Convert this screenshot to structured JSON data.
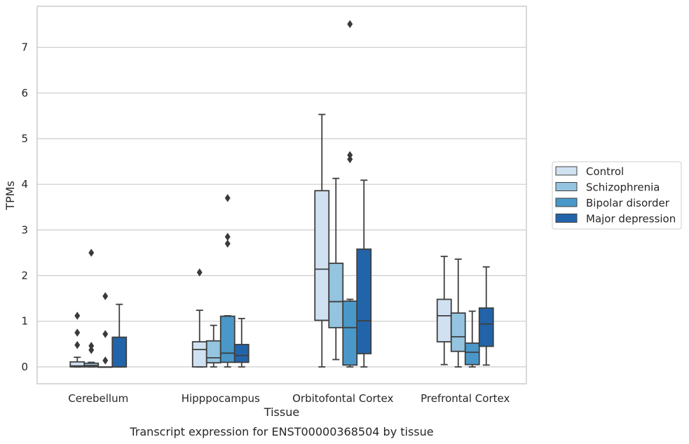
{
  "chart_data": {
    "type": "box",
    "title": "",
    "caption": "Transcript expression for ENST00000368504 by tissue",
    "xlabel": "Tissue",
    "ylabel": "TPMs",
    "ylim": [
      -0.37,
      7.9
    ],
    "yticks": [
      "0",
      "1",
      "2",
      "3",
      "4",
      "5",
      "6",
      "7"
    ],
    "grid": true,
    "legend_position": "right",
    "categories": [
      "Cerebellum",
      "Hipppocampus",
      "Orbitofontal Cortex",
      "Prefrontal Cortex"
    ],
    "series": [
      {
        "name": "Control",
        "color": "#d0e1f2",
        "boxes": [
          {
            "q1": 0.0,
            "median": 0.02,
            "q3": 0.11,
            "whisker_low": 0.0,
            "whisker_high": 0.21,
            "outliers": [
              0.48,
              0.75,
              1.12
            ]
          },
          {
            "q1": 0.0,
            "median": 0.38,
            "q3": 0.55,
            "whisker_low": 0.0,
            "whisker_high": 1.24,
            "outliers": [
              2.07
            ]
          },
          {
            "q1": 1.02,
            "median": 2.14,
            "q3": 3.86,
            "whisker_low": 0.0,
            "whisker_high": 5.53,
            "outliers": []
          },
          {
            "q1": 0.55,
            "median": 1.12,
            "q3": 1.48,
            "whisker_low": 0.05,
            "whisker_high": 2.42,
            "outliers": []
          }
        ]
      },
      {
        "name": "Schizophrenia",
        "color": "#94c4df",
        "boxes": [
          {
            "q1": 0.0,
            "median": 0.03,
            "q3": 0.08,
            "whisker_low": 0.0,
            "whisker_high": 0.1,
            "outliers": [
              0.37,
              0.46,
              2.5
            ]
          },
          {
            "q1": 0.09,
            "median": 0.2,
            "q3": 0.57,
            "whisker_low": 0.0,
            "whisker_high": 0.91,
            "outliers": []
          },
          {
            "q1": 0.86,
            "median": 1.43,
            "q3": 2.27,
            "whisker_low": 0.16,
            "whisker_high": 4.13,
            "outliers": []
          },
          {
            "q1": 0.34,
            "median": 0.66,
            "q3": 1.18,
            "whisker_low": 0.0,
            "whisker_high": 2.36,
            "outliers": []
          }
        ]
      },
      {
        "name": "Bipolar disorder",
        "color": "#4a98c9",
        "boxes": [
          {
            "q1": 0.0,
            "median": 0.0,
            "q3": 0.0,
            "whisker_low": 0.0,
            "whisker_high": 0.0,
            "outliers": [
              0.14,
              0.72,
              1.55
            ]
          },
          {
            "q1": 0.1,
            "median": 0.3,
            "q3": 1.11,
            "whisker_low": 0.0,
            "whisker_high": 1.12,
            "outliers": [
              2.7,
              2.85,
              3.7
            ]
          },
          {
            "q1": 0.04,
            "median": 0.86,
            "q3": 1.44,
            "whisker_low": 0.0,
            "whisker_high": 1.48,
            "outliers": [
              4.55,
              4.64,
              7.51
            ]
          },
          {
            "q1": 0.05,
            "median": 0.32,
            "q3": 0.52,
            "whisker_low": 0.0,
            "whisker_high": 1.22,
            "outliers": []
          }
        ]
      },
      {
        "name": "Major depression",
        "color": "#2264a9",
        "boxes": [
          {
            "q1": 0.0,
            "median": 0.0,
            "q3": 0.65,
            "whisker_low": 0.0,
            "whisker_high": 1.37,
            "outliers": []
          },
          {
            "q1": 0.1,
            "median": 0.25,
            "q3": 0.49,
            "whisker_low": 0.0,
            "whisker_high": 1.06,
            "outliers": []
          },
          {
            "q1": 0.29,
            "median": 1.01,
            "q3": 2.58,
            "whisker_low": 0.0,
            "whisker_high": 4.09,
            "outliers": []
          },
          {
            "q1": 0.45,
            "median": 0.94,
            "q3": 1.29,
            "whisker_low": 0.04,
            "whisker_high": 2.19,
            "outliers": []
          }
        ]
      }
    ]
  }
}
